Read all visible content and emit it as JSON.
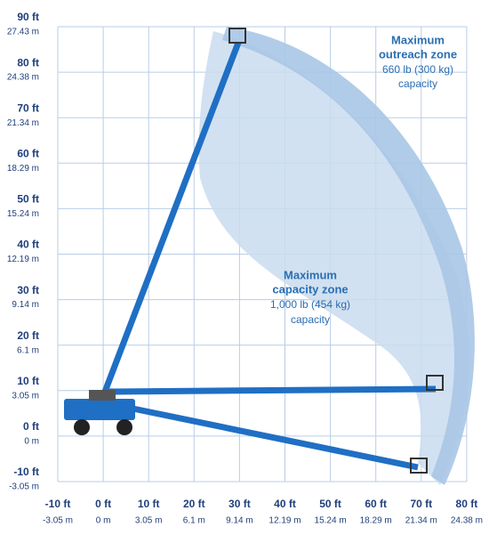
{
  "y_axis": {
    "ticks": [
      {
        "ft": "90 ft",
        "m": "27.43 m"
      },
      {
        "ft": "80 ft",
        "m": "24.38 m"
      },
      {
        "ft": "70 ft",
        "m": "21.34 m"
      },
      {
        "ft": "60 ft",
        "m": "18.29 m"
      },
      {
        "ft": "50 ft",
        "m": "15.24 m"
      },
      {
        "ft": "40 ft",
        "m": "12.19 m"
      },
      {
        "ft": "30 ft",
        "m": "9.14 m"
      },
      {
        "ft": "20 ft",
        "m": "6.1 m"
      },
      {
        "ft": "10 ft",
        "m": "3.05 m"
      },
      {
        "ft": "0 ft",
        "m": "0 m"
      },
      {
        "ft": "-10 ft",
        "m": "-3.05 m"
      }
    ]
  },
  "x_axis": {
    "ticks": [
      {
        "ft": "-10 ft",
        "m": "-3.05 m"
      },
      {
        "ft": "0 ft",
        "m": "0 m"
      },
      {
        "ft": "10 ft",
        "m": "3.05 m"
      },
      {
        "ft": "20 ft",
        "m": "6.1 m"
      },
      {
        "ft": "30 ft",
        "m": "9.14 m"
      },
      {
        "ft": "40 ft",
        "m": "12.19 m"
      },
      {
        "ft": "50 ft",
        "m": "15.24 m"
      },
      {
        "ft": "60 ft",
        "m": "18.29 m"
      },
      {
        "ft": "70 ft",
        "m": "21.34 m"
      },
      {
        "ft": "80 ft",
        "m": "24.38 m"
      }
    ]
  },
  "zones": {
    "outreach": {
      "title_1": "Maximum",
      "title_2": "outreach zone",
      "load": "660 lb (300 kg)",
      "note": "capacity"
    },
    "capacity": {
      "title_1": "Maximum",
      "title_2": "capacity zone",
      "load": "1,000 lb (454 kg)",
      "note": "capacity"
    }
  }
}
